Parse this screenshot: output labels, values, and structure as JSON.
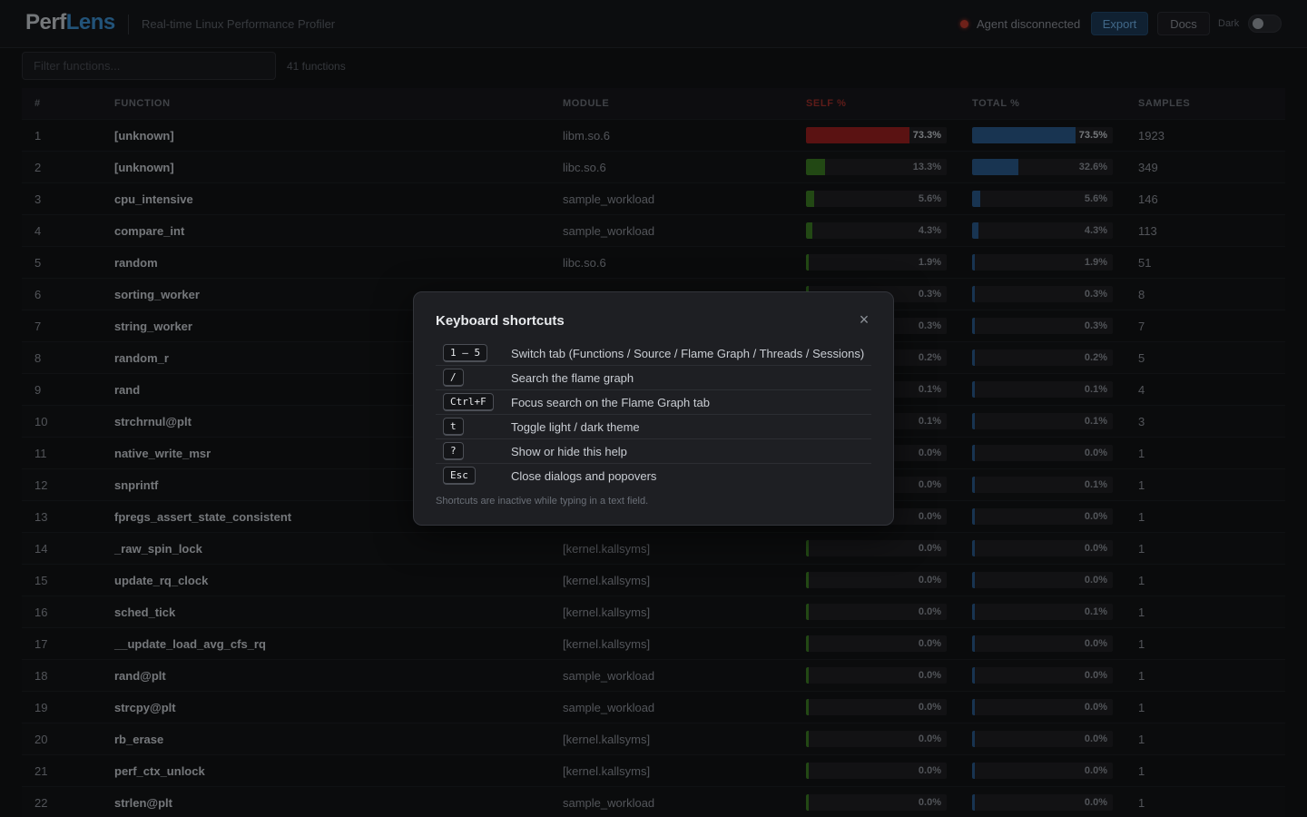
{
  "header": {
    "logo_part1": "Perf",
    "logo_part2": "Lens",
    "tagline": "Real-time Linux Performance Profiler",
    "status_text": "Agent disconnected",
    "export_label": "Export",
    "docs_label": "Docs",
    "theme_label": "Dark",
    "colors": {
      "accent": "#3c8fd0",
      "status_error": "#c0392b"
    }
  },
  "filter": {
    "placeholder": "Filter functions...",
    "count_text": "41 functions"
  },
  "table": {
    "columns": {
      "idx": "#",
      "function": "FUNCTION",
      "module": "MODULE",
      "self": "SELF %",
      "total": "TOTAL %",
      "samples": "SAMPLES"
    },
    "sorted_by": "SELF %",
    "rows": [
      {
        "idx": "1",
        "function": "[unknown]",
        "module": "libm.so.6",
        "self": 73.3,
        "self_label": "73.3%",
        "total": 73.5,
        "total_label": "73.5%",
        "samples": "1923"
      },
      {
        "idx": "2",
        "function": "[unknown]",
        "module": "libc.so.6",
        "self": 13.3,
        "self_label": "13.3%",
        "total": 32.6,
        "total_label": "32.6%",
        "samples": "349"
      },
      {
        "idx": "3",
        "function": "cpu_intensive",
        "module": "sample_workload",
        "self": 5.6,
        "self_label": "5.6%",
        "total": 5.6,
        "total_label": "5.6%",
        "samples": "146"
      },
      {
        "idx": "4",
        "function": "compare_int",
        "module": "sample_workload",
        "self": 4.3,
        "self_label": "4.3%",
        "total": 4.3,
        "total_label": "4.3%",
        "samples": "113"
      },
      {
        "idx": "5",
        "function": "random",
        "module": "libc.so.6",
        "self": 1.9,
        "self_label": "1.9%",
        "total": 1.9,
        "total_label": "1.9%",
        "samples": "51"
      },
      {
        "idx": "6",
        "function": "sorting_worker",
        "module": "",
        "self": 0.3,
        "self_label": "0.3%",
        "total": 0.3,
        "total_label": "0.3%",
        "samples": "8"
      },
      {
        "idx": "7",
        "function": "string_worker",
        "module": "",
        "self": 0.3,
        "self_label": "0.3%",
        "total": 0.3,
        "total_label": "0.3%",
        "samples": "7"
      },
      {
        "idx": "8",
        "function": "random_r",
        "module": "",
        "self": 0.2,
        "self_label": "0.2%",
        "total": 0.2,
        "total_label": "0.2%",
        "samples": "5"
      },
      {
        "idx": "9",
        "function": "rand",
        "module": "",
        "self": 0.1,
        "self_label": "0.1%",
        "total": 0.1,
        "total_label": "0.1%",
        "samples": "4"
      },
      {
        "idx": "10",
        "function": "strchrnul@plt",
        "module": "",
        "self": 0.1,
        "self_label": "0.1%",
        "total": 0.1,
        "total_label": "0.1%",
        "samples": "3"
      },
      {
        "idx": "11",
        "function": "native_write_msr",
        "module": "",
        "self": 0.0,
        "self_label": "0.0%",
        "total": 0.0,
        "total_label": "0.0%",
        "samples": "1"
      },
      {
        "idx": "12",
        "function": "snprintf",
        "module": "",
        "self": 0.0,
        "self_label": "0.0%",
        "total": 0.1,
        "total_label": "0.1%",
        "samples": "1"
      },
      {
        "idx": "13",
        "function": "fpregs_assert_state_consistent",
        "module": "",
        "self": 0.0,
        "self_label": "0.0%",
        "total": 0.0,
        "total_label": "0.0%",
        "samples": "1"
      },
      {
        "idx": "14",
        "function": "_raw_spin_lock",
        "module": "[kernel.kallsyms]",
        "self": 0.0,
        "self_label": "0.0%",
        "total": 0.0,
        "total_label": "0.0%",
        "samples": "1"
      },
      {
        "idx": "15",
        "function": "update_rq_clock",
        "module": "[kernel.kallsyms]",
        "self": 0.0,
        "self_label": "0.0%",
        "total": 0.0,
        "total_label": "0.0%",
        "samples": "1"
      },
      {
        "idx": "16",
        "function": "sched_tick",
        "module": "[kernel.kallsyms]",
        "self": 0.0,
        "self_label": "0.0%",
        "total": 0.1,
        "total_label": "0.1%",
        "samples": "1"
      },
      {
        "idx": "17",
        "function": "__update_load_avg_cfs_rq",
        "module": "[kernel.kallsyms]",
        "self": 0.0,
        "self_label": "0.0%",
        "total": 0.0,
        "total_label": "0.0%",
        "samples": "1"
      },
      {
        "idx": "18",
        "function": "rand@plt",
        "module": "sample_workload",
        "self": 0.0,
        "self_label": "0.0%",
        "total": 0.0,
        "total_label": "0.0%",
        "samples": "1"
      },
      {
        "idx": "19",
        "function": "strcpy@plt",
        "module": "sample_workload",
        "self": 0.0,
        "self_label": "0.0%",
        "total": 0.0,
        "total_label": "0.0%",
        "samples": "1"
      },
      {
        "idx": "20",
        "function": "rb_erase",
        "module": "[kernel.kallsyms]",
        "self": 0.0,
        "self_label": "0.0%",
        "total": 0.0,
        "total_label": "0.0%",
        "samples": "1"
      },
      {
        "idx": "21",
        "function": "perf_ctx_unlock",
        "module": "[kernel.kallsyms]",
        "self": 0.0,
        "self_label": "0.0%",
        "total": 0.0,
        "total_label": "0.0%",
        "samples": "1"
      },
      {
        "idx": "22",
        "function": "strlen@plt",
        "module": "sample_workload",
        "self": 0.0,
        "self_label": "0.0%",
        "total": 0.0,
        "total_label": "0.0%",
        "samples": "1"
      }
    ]
  },
  "modal": {
    "title": "Keyboard shortcuts",
    "close_icon": "×",
    "shortcuts": [
      {
        "key": "1 – 5",
        "desc": "Switch tab (Functions / Source / Flame Graph / Threads / Sessions)"
      },
      {
        "key": "/",
        "desc": "Search the flame graph"
      },
      {
        "key": "Ctrl+F",
        "desc": "Focus search on the Flame Graph tab"
      },
      {
        "key": "t",
        "desc": "Toggle light / dark theme"
      },
      {
        "key": "?",
        "desc": "Show or hide this help"
      },
      {
        "key": "Esc",
        "desc": "Close dialogs and popovers"
      }
    ],
    "note": "Shortcuts are inactive while typing in a text field."
  }
}
